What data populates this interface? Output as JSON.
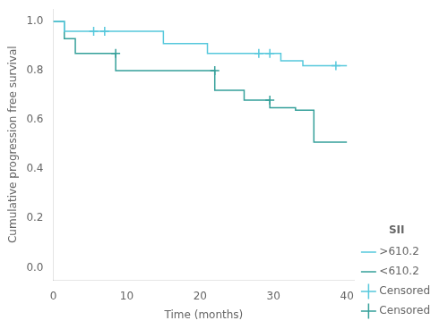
{
  "chart_data": {
    "type": "line",
    "xlabel": "Time (months)",
    "ylabel": "Cumulative progression free survival",
    "xlim": [
      0,
      41
    ],
    "ylim": [
      -0.05,
      1.05
    ],
    "xticks": [
      0,
      10,
      20,
      30,
      40
    ],
    "yticks": [
      {
        "value": 0.0,
        "label": "0.0"
      },
      0.2,
      0.4,
      0.6,
      0.8,
      {
        "value": 1.0,
        "label": "1.0"
      }
    ],
    "grid": false,
    "legend": "lower right",
    "legend_title": "SII",
    "series": [
      {
        "name": ">610.2",
        "color": "#56C8DC",
        "type": "step",
        "x": [
          0,
          1.5,
          3.0,
          5.5,
          7.0,
          15.0,
          17.0,
          21.0,
          28.0,
          29.5,
          31.0,
          34.0,
          38.5,
          40
        ],
        "values": [
          1.0,
          1.0,
          0.96,
          0.96,
          0.96,
          0.96,
          0.91,
          0.91,
          0.87,
          0.87,
          0.87,
          0.84,
          0.82,
          0.82
        ]
      },
      {
        "name": "<610.2",
        "color": "#35A09A",
        "type": "step",
        "x": [
          0,
          1.5,
          3.0,
          8.5,
          14.5,
          17.0,
          22.0,
          26.0,
          27.5,
          29.5,
          33.0,
          35.5,
          37.0,
          40
        ],
        "values": [
          1.0,
          1.0,
          0.93,
          0.87,
          0.8,
          0.8,
          0.8,
          0.72,
          0.68,
          0.68,
          0.65,
          0.64,
          0.51,
          0.51
        ]
      },
      {
        "name": "Censored",
        "color": "#56C8DC",
        "type": "scatter",
        "marker": "+",
        "x": [
          5.5,
          7.0,
          28.0,
          29.5,
          38.5
        ],
        "values": [
          0.96,
          0.96,
          0.87,
          0.87,
          0.82
        ]
      },
      {
        "name": "Censored",
        "color": "#35A09A",
        "type": "scatter",
        "marker": "+",
        "x": [
          8.5,
          22.0,
          29.5
        ],
        "values": [
          0.87,
          0.8,
          0.68
        ]
      }
    ]
  }
}
